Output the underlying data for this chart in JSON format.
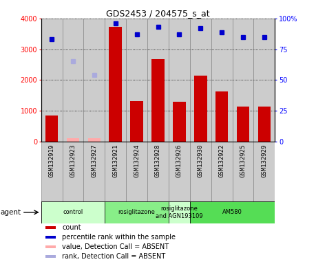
{
  "title": "GDS2453 / 204575_s_at",
  "samples": [
    "GSM132919",
    "GSM132923",
    "GSM132927",
    "GSM132921",
    "GSM132924",
    "GSM132928",
    "GSM132926",
    "GSM132930",
    "GSM132922",
    "GSM132925",
    "GSM132929"
  ],
  "count_values": [
    830,
    null,
    null,
    3720,
    1310,
    2680,
    1290,
    2140,
    1620,
    1140,
    1140
  ],
  "count_absent": [
    null,
    110,
    100,
    null,
    null,
    null,
    null,
    null,
    null,
    null,
    null
  ],
  "percentile_values": [
    83,
    null,
    null,
    96,
    87,
    93,
    87,
    92,
    89,
    85,
    85
  ],
  "percentile_absent": [
    null,
    65,
    54,
    null,
    null,
    null,
    null,
    null,
    null,
    null,
    null
  ],
  "ylim_left": [
    0,
    4000
  ],
  "ylim_right": [
    0,
    100
  ],
  "yticks_left": [
    0,
    1000,
    2000,
    3000,
    4000
  ],
  "yticks_right": [
    0,
    25,
    50,
    75,
    100
  ],
  "agent_groups": [
    {
      "label": "control",
      "start": 0,
      "end": 3,
      "color": "#ccffcc"
    },
    {
      "label": "rosiglitazone",
      "start": 3,
      "end": 6,
      "color": "#88ee88"
    },
    {
      "label": "rosiglitazone\nand AGN193109",
      "start": 6,
      "end": 7,
      "color": "#ccffcc"
    },
    {
      "label": "AM580",
      "start": 7,
      "end": 11,
      "color": "#55dd55"
    }
  ],
  "bar_color": "#cc0000",
  "bar_absent_color": "#ffaaaa",
  "dot_color": "#0000cc",
  "dot_absent_color": "#aaaadd",
  "bar_width": 0.6,
  "col_bg_color": "#cccccc",
  "col_border_color": "#888888"
}
